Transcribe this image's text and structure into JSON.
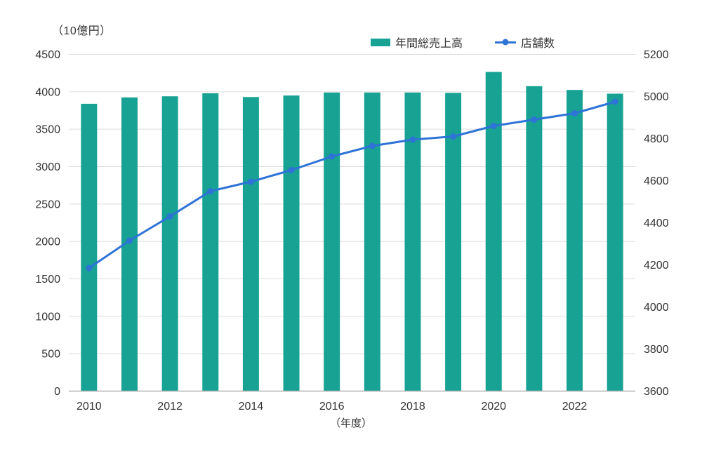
{
  "chart_data": {
    "type": "combo_bar_line",
    "title": "",
    "xlabel": "（年度）",
    "categories": [
      "2010",
      "2011",
      "2012",
      "2013",
      "2014",
      "2015",
      "2016",
      "2017",
      "2018",
      "2019",
      "2020",
      "2021",
      "2022",
      "2023"
    ],
    "x_tick_labels": [
      "2010",
      "2012",
      "2014",
      "2016",
      "2018",
      "2020",
      "2022"
    ],
    "x_tick_every": 2,
    "grid": true,
    "legend_position": "top",
    "left_axis": {
      "unit_label": "（10億円）",
      "min": 0,
      "max": 4500,
      "step": 500,
      "ticks": [
        0,
        500,
        1000,
        1500,
        2000,
        2500,
        3000,
        3500,
        4000,
        4500
      ]
    },
    "right_axis": {
      "min": 3600,
      "max": 5200,
      "step": 200,
      "ticks": [
        3600,
        3800,
        4000,
        4200,
        4400,
        4600,
        4800,
        5000,
        5200
      ]
    },
    "series": [
      {
        "name": "年間総売上高",
        "type": "bar",
        "axis": "left",
        "color": "#18a294",
        "values": [
          3840,
          3925,
          3940,
          3980,
          3930,
          3950,
          3990,
          3990,
          3990,
          3985,
          4265,
          4075,
          4025,
          3975
        ]
      },
      {
        "name": "店舗数",
        "type": "line",
        "axis": "right",
        "color": "#2e73d6",
        "values": [
          4185,
          4315,
          4430,
          4550,
          4595,
          4650,
          4715,
          4765,
          4795,
          4810,
          4860,
          4890,
          4920,
          4975
        ]
      }
    ],
    "colors": {
      "grid_line": "#dcdcdc",
      "axis_line": "#b3b3b3",
      "text": "#333333",
      "background": "#ffffff"
    }
  }
}
